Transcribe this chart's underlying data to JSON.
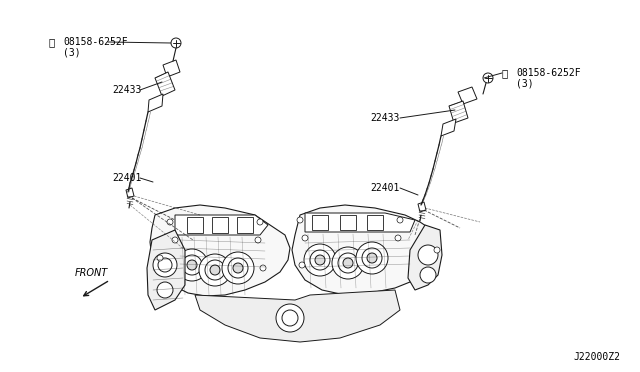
{
  "bg_color": "#ffffff",
  "line_color": "#1a1a1a",
  "text_color": "#000000",
  "diagram_id": "J22000Z2",
  "fig_w": 6.4,
  "fig_h": 3.72,
  "dpi": 100,
  "labels": {
    "left_partno": "08158-6252F",
    "left_partno_sub": "(3)",
    "left_coil": "22433",
    "left_plug": "22401",
    "right_partno": "08158-6252F",
    "right_partno_sub": "(3)",
    "right_coil": "22433",
    "right_plug": "22401",
    "front": "FRONT"
  }
}
